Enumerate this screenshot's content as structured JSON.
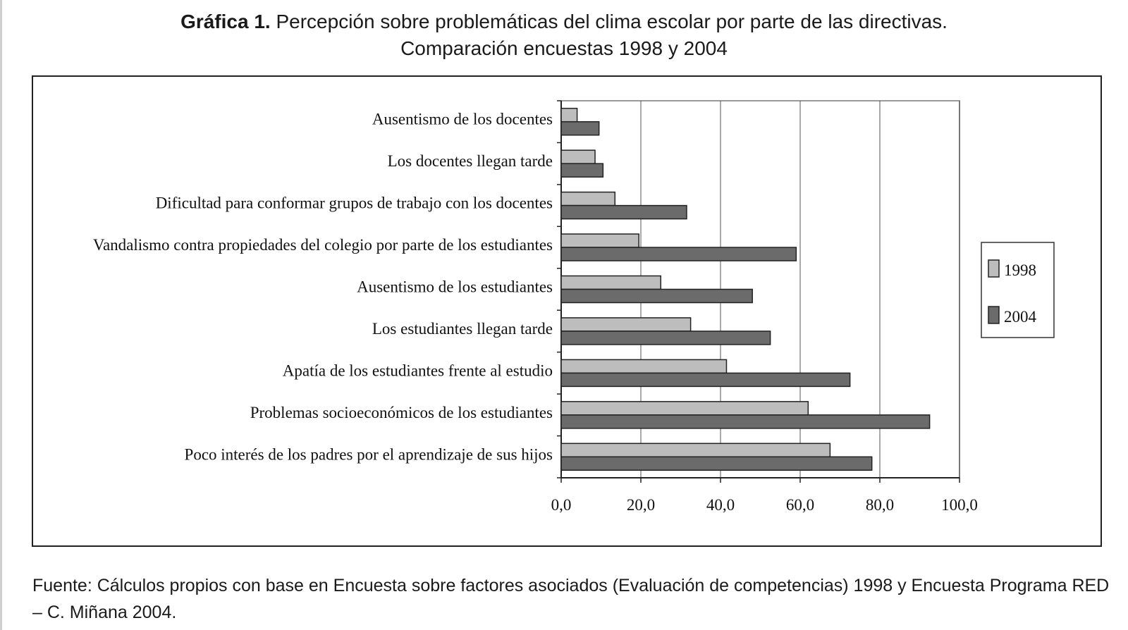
{
  "caption": {
    "label": "Gráfica 1.",
    "text_line1": "Percepción sobre problemáticas del clima escolar por parte de las directivas.",
    "text_line2": "Comparación encuestas 1998 y 2004"
  },
  "source": {
    "text": "Fuente: Cálculos propios con base en Encuesta sobre factores asociados (Evaluación de competencias) 1998 y Encuesta Programa RED – C. Miñana 2004."
  },
  "chart_data": {
    "type": "bar",
    "orientation": "horizontal",
    "categories": [
      "Ausentismo de los docentes",
      "Los docentes llegan tarde",
      "Dificultad para conformar grupos de trabajo con los docentes",
      "Vandalismo contra propiedades del colegio por parte de los estudiantes",
      "Ausentismo de los estudiantes",
      "Los estudiantes llegan tarde",
      "Apatía de los estudiantes frente al estudio",
      "Problemas socioeconómicos de los estudiantes",
      "Poco interés de los padres por el aprendizaje de sus hijos"
    ],
    "series": [
      {
        "name": "1998",
        "color": "#bdbdbd",
        "values": [
          4.0,
          8.5,
          13.5,
          19.5,
          25.0,
          32.5,
          41.5,
          62.0,
          67.5
        ]
      },
      {
        "name": "2004",
        "color": "#6b6b6b",
        "values": [
          9.5,
          10.5,
          31.5,
          59.0,
          48.0,
          52.5,
          72.5,
          92.5,
          78.0
        ]
      }
    ],
    "xlim": [
      0,
      100
    ],
    "xticks": [
      "0,0",
      "20,0",
      "40,0",
      "60,0",
      "80,0",
      "100,0"
    ],
    "xtick_values": [
      0,
      20,
      40,
      60,
      80,
      100
    ],
    "grid": "vertical",
    "legend_position": "right"
  }
}
